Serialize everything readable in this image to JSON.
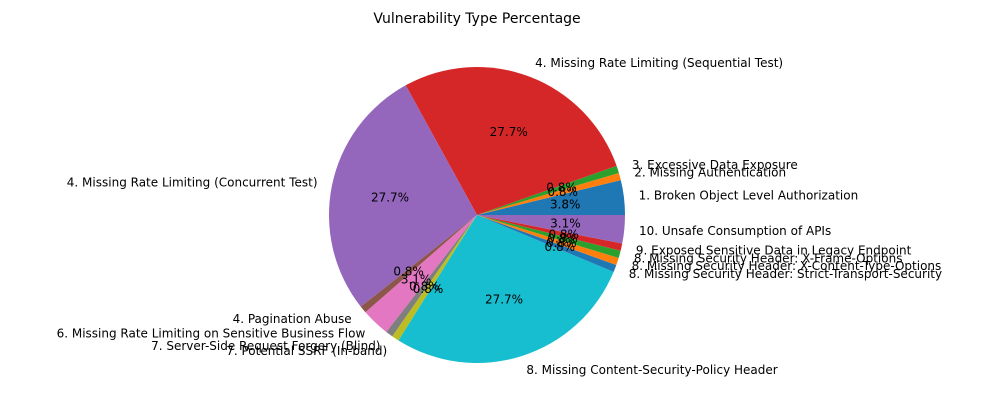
{
  "chart_data": {
    "type": "pie",
    "title": "Vulnerability Type Percentage",
    "labels": [
      "1. Broken Object Level Authorization",
      "2. Missing Authentication",
      "3. Excessive Data Exposure",
      "4. Missing Rate Limiting (Sequential Test)",
      "4. Missing Rate Limiting (Concurrent Test)",
      "4. Pagination Abuse",
      "6. Missing Rate Limiting on Sensitive Business Flow",
      "7. Server-Side Request Forgery (Blind)",
      "7. Potential SSRF (In-band)",
      "8. Missing Content-Security-Policy Header",
      "8. Missing Security Header: Strict-Transport-Security",
      "8. Missing Security Header: X-Content-Type-Options",
      "8. Missing Security Header: X-Frame-Options",
      "9. Exposed Sensitive Data in Legacy Endpoint",
      "10. Unsafe Consumption of APIs"
    ],
    "values": [
      3.8,
      0.8,
      0.8,
      27.7,
      27.7,
      0.8,
      3.1,
      0.8,
      0.8,
      27.7,
      0.8,
      0.8,
      0.8,
      0.8,
      3.1
    ],
    "autopct_labels": [
      "3.8%",
      "0.8%",
      "0.8%",
      "27.7%",
      "27.7%",
      "0.8%",
      "3.1%",
      "0.8%",
      "0.8%",
      "27.7%",
      "0.8%",
      "0.8%",
      "0.8%",
      "0.8%",
      "3.1%"
    ],
    "colors": [
      "#1f77b4",
      "#ff7f0e",
      "#2ca02c",
      "#d62728",
      "#9467bd",
      "#8c564b",
      "#e377c2",
      "#7f7f7f",
      "#bcbd22",
      "#17becf",
      "#1f77b4",
      "#ff7f0e",
      "#2ca02c",
      "#d62728",
      "#9467bd"
    ],
    "start_angle_deg": 0,
    "direction": "counterclockwise",
    "legend": "none"
  }
}
